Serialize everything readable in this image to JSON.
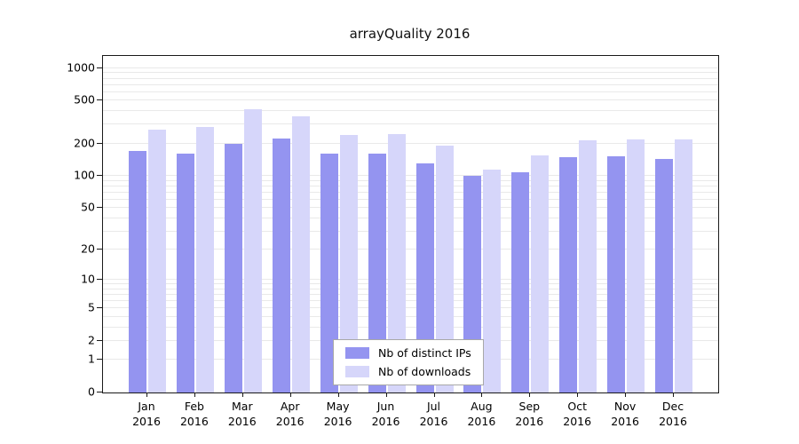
{
  "chart_data": {
    "type": "bar",
    "title": "arrayQuality 2016",
    "categories": [
      "Jan",
      "Feb",
      "Mar",
      "Apr",
      "May",
      "Jun",
      "Jul",
      "Aug",
      "Sep",
      "Oct",
      "Nov",
      "Dec"
    ],
    "year_label": "2016",
    "series": [
      {
        "name": "Nb of distinct IPs",
        "color": "#9494f0",
        "values": [
          170,
          160,
          200,
          225,
          162,
          162,
          130,
          100,
          108,
          150,
          152,
          143
        ]
      },
      {
        "name": "Nb of downloads",
        "color": "#d6d6fa",
        "values": [
          270,
          283,
          420,
          360,
          240,
          245,
          190,
          115,
          155,
          215,
          220,
          220
        ]
      }
    ],
    "yticks": [
      0,
      1,
      2,
      5,
      10,
      20,
      50,
      100,
      200,
      500,
      1000
    ],
    "ylim": [
      0,
      1000
    ],
    "scale": "log10(1+y)",
    "grid": true,
    "legend_position": "inside-bottom-center"
  }
}
